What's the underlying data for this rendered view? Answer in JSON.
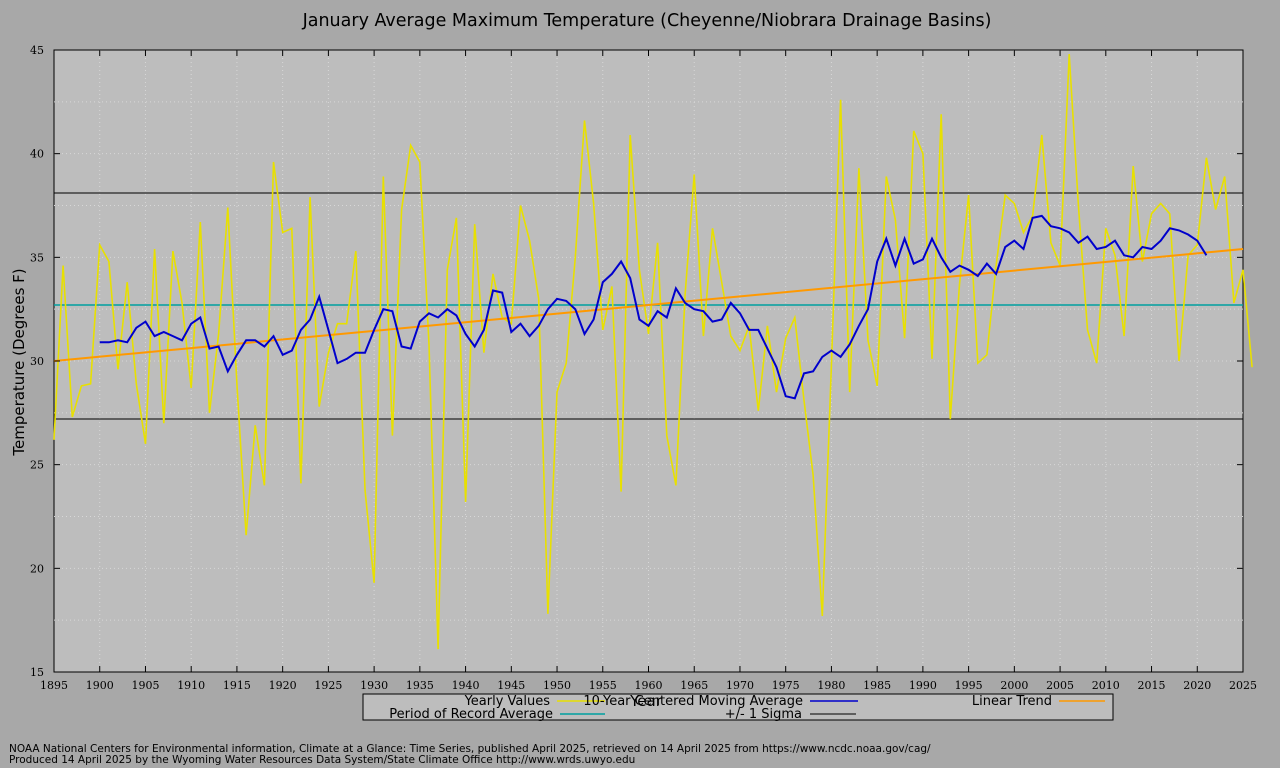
{
  "chart_data": {
    "type": "line",
    "title": "January Average Maximum Temperature (Cheyenne/Niobrara Drainage Basins)",
    "xlabel": "Year",
    "ylabel": "Temperature (Degrees F)",
    "xlim": [
      1895,
      2025
    ],
    "ylim": [
      15,
      45
    ],
    "x_ticks": [
      1895,
      1900,
      1905,
      1910,
      1915,
      1920,
      1925,
      1930,
      1935,
      1940,
      1945,
      1950,
      1955,
      1960,
      1965,
      1970,
      1975,
      1980,
      1985,
      1990,
      1995,
      2000,
      2005,
      2010,
      2015,
      2020,
      2025
    ],
    "y_ticks": [
      15,
      20,
      25,
      30,
      35,
      40,
      45
    ],
    "grid": true,
    "legend_position": "bottom",
    "colors": {
      "background": "#a8a8a8",
      "plot": "#bdbdbd",
      "grid": "#d8d8d8",
      "yearly": "#e8e000",
      "moving_avg": "#0000cc",
      "trend": "#ff9900",
      "por_avg": "#00a0a0",
      "sigma": "#000000"
    },
    "series": [
      {
        "name": "Yearly Values",
        "x_start": 1895,
        "values": [
          26.2,
          34.6,
          27.3,
          28.8,
          28.9,
          35.6,
          34.8,
          29.6,
          33.8,
          28.9,
          26.0,
          35.4,
          27.0,
          35.3,
          32.8,
          28.7,
          36.7,
          27.5,
          31.3,
          37.4,
          28.9,
          21.6,
          26.9,
          24.0,
          39.6,
          36.2,
          36.4,
          24.1,
          37.9,
          27.8,
          30.4,
          31.8,
          31.8,
          35.3,
          23.8,
          19.3,
          38.9,
          26.4,
          37.3,
          40.4,
          39.6,
          30.8,
          16.1,
          34.4,
          36.9,
          23.2,
          36.6,
          30.4,
          34.2,
          32.1,
          31.8,
          37.5,
          35.8,
          33.0,
          17.8,
          28.5,
          29.9,
          35.0,
          41.6,
          37.6,
          31.5,
          33.6,
          23.7,
          40.9,
          34.4,
          31.3,
          35.7,
          26.4,
          24.0,
          33.2,
          39.0,
          31.2,
          36.4,
          33.8,
          31.2,
          30.5,
          31.7,
          27.6,
          31.7,
          28.5,
          31.1,
          32.1,
          28.1,
          24.5,
          17.7,
          29.8,
          42.6,
          28.5,
          39.3,
          31.0,
          28.8,
          38.9,
          36.8,
          31.1,
          41.1,
          40.0,
          30.1,
          41.9,
          27.2,
          33.7,
          38.0,
          29.9,
          30.3,
          34.6,
          38.0,
          37.6,
          36.2,
          37.0,
          40.9,
          35.7,
          34.6,
          44.8,
          37.5,
          31.5,
          29.9,
          36.4,
          35.1,
          31.2,
          39.4,
          34.8,
          37.1,
          37.6,
          37.1,
          30.0,
          35.1,
          35.6,
          39.8,
          37.3,
          38.9,
          32.8,
          34.4,
          29.7
        ]
      },
      {
        "name": "10-Year Centered Moving Average",
        "x_start": 1900,
        "values": [
          30.9,
          30.9,
          31.0,
          30.9,
          31.6,
          31.9,
          31.2,
          31.4,
          31.2,
          31.0,
          31.8,
          32.1,
          30.6,
          30.7,
          29.5,
          30.3,
          31.0,
          31.0,
          30.7,
          31.2,
          30.3,
          30.5,
          31.5,
          32.0,
          33.1,
          31.5,
          29.9,
          30.1,
          30.4,
          30.4,
          31.5,
          32.5,
          32.4,
          30.7,
          30.6,
          31.9,
          32.3,
          32.1,
          32.5,
          32.2,
          31.3,
          30.7,
          31.5,
          33.4,
          33.3,
          31.4,
          31.8,
          31.2,
          31.7,
          32.5,
          33.0,
          32.9,
          32.5,
          31.3,
          32.0,
          33.8,
          34.2,
          34.8,
          34.0,
          32.0,
          31.7,
          32.4,
          32.1,
          33.5,
          32.8,
          32.5,
          32.4,
          31.9,
          32.0,
          32.8,
          32.3,
          31.5,
          31.5,
          30.6,
          29.7,
          28.3,
          28.2,
          29.4,
          29.5,
          30.2,
          30.5,
          30.2,
          30.8,
          31.7,
          32.5,
          34.8,
          35.9,
          34.6,
          35.9,
          34.7,
          34.9,
          35.9,
          35.0,
          34.3,
          34.6,
          34.4,
          34.1,
          34.7,
          34.2,
          35.5,
          35.8,
          35.4,
          36.9,
          37.0,
          36.5,
          36.4,
          36.2,
          35.7,
          36.0,
          35.4,
          35.5,
          35.8,
          35.1,
          35.0,
          35.5,
          35.4,
          35.8,
          36.4,
          36.3,
          36.1,
          35.8,
          35.1
        ]
      },
      {
        "name": "Linear Trend",
        "x": [
          1895,
          2025
        ],
        "y": [
          30.0,
          35.4
        ]
      },
      {
        "name": "Period of Record Average",
        "value": 32.7
      },
      {
        "name": "+/- 1 Sigma",
        "upper": 38.1,
        "lower": 27.2
      }
    ],
    "legend": {
      "yearly": "Yearly Values",
      "moving_avg": "10-Year Centered Moving Average",
      "trend": "Linear Trend",
      "por_avg": "Period of Record Average",
      "sigma": "+/- 1 Sigma"
    }
  },
  "credits": {
    "line1": "NOAA National Centers for Environmental information, Climate at a Glance: Time Series, published April 2025, retrieved on 14 April 2025 from https://www.ncdc.noaa.gov/cag/",
    "line2": "Produced 14 April 2025 by the Wyoming Water Resources Data System/State Climate Office http://www.wrds.uwyo.edu"
  }
}
